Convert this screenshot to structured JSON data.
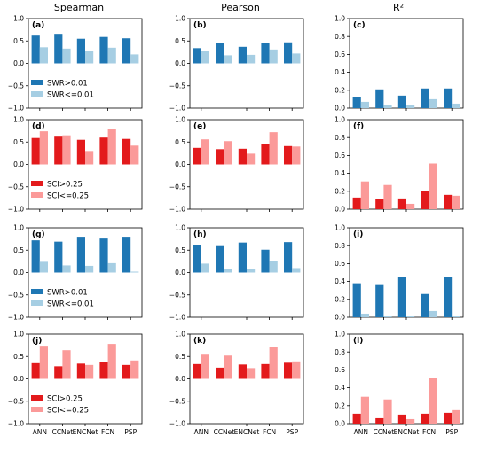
{
  "figure": {
    "columns": [
      "Spearman",
      "Pearson",
      "R²"
    ],
    "categories": [
      "ANN",
      "CCNet",
      "ENCNet",
      "FCN",
      "PSP"
    ]
  },
  "colors": {
    "swr_high": "#1f77b4",
    "swr_low": "#a6cee3",
    "sci_high": "#e31a1c",
    "sci_low": "#fb9a99"
  },
  "legends": {
    "swr": [
      "SWR>0.01",
      "SWR<=0.01"
    ],
    "sci": [
      "SCI>0.25",
      "SCI<=0.25"
    ]
  },
  "chart_data": [
    {
      "label": "(a)",
      "type": "bar",
      "metric": "Spearman",
      "categories": [
        "ANN",
        "CCNet",
        "ENCNet",
        "FCN",
        "PSP"
      ],
      "ylim": [
        -1.0,
        1.0
      ],
      "yticks": [
        "1.0",
        "0.5",
        "0.0",
        "−0.5",
        "−1.0"
      ],
      "legend_group": "swr",
      "legend_location": "lower-left",
      "series": [
        {
          "name": "SWR>0.01",
          "color_key": "swr_high",
          "values": [
            0.62,
            0.66,
            0.55,
            0.59,
            0.56
          ]
        },
        {
          "name": "SWR<=0.01",
          "color_key": "swr_low",
          "values": [
            0.36,
            0.33,
            0.28,
            0.35,
            0.2
          ]
        }
      ]
    },
    {
      "label": "(b)",
      "type": "bar",
      "metric": "Pearson",
      "categories": [
        "ANN",
        "CCNet",
        "ENCNet",
        "FCN",
        "PSP"
      ],
      "ylim": [
        -1.0,
        1.0
      ],
      "yticks": [
        "1.0",
        "0.5",
        "0.0",
        "−0.5",
        "−1.0"
      ],
      "series": [
        {
          "name": "SWR>0.01",
          "color_key": "swr_high",
          "values": [
            0.34,
            0.45,
            0.37,
            0.46,
            0.47
          ]
        },
        {
          "name": "SWR<=0.01",
          "color_key": "swr_low",
          "values": [
            0.27,
            0.18,
            0.19,
            0.31,
            0.22
          ]
        }
      ]
    },
    {
      "label": "(c)",
      "type": "bar",
      "metric": "R²",
      "categories": [
        "ANN",
        "CCNet",
        "ENCNet",
        "FCN",
        "PSP"
      ],
      "ylim": [
        0.0,
        1.0
      ],
      "yticks": [
        "1.0",
        "0.8",
        "0.6",
        "0.4",
        "0.2",
        "0.0"
      ],
      "series": [
        {
          "name": "SWR>0.01",
          "color_key": "swr_high",
          "values": [
            0.12,
            0.21,
            0.14,
            0.22,
            0.22
          ]
        },
        {
          "name": "SWR<=0.01",
          "color_key": "swr_low",
          "values": [
            0.07,
            0.03,
            0.03,
            0.1,
            0.05
          ]
        }
      ]
    },
    {
      "label": "(d)",
      "type": "bar",
      "metric": "Spearman",
      "categories": [
        "ANN",
        "CCNet",
        "ENCNet",
        "FCN",
        "PSP"
      ],
      "ylim": [
        -1.0,
        1.0
      ],
      "yticks": [
        "1.0",
        "0.5",
        "0.0",
        "−0.5",
        "−1.0"
      ],
      "legend_group": "sci",
      "legend_location": "lower-left",
      "series": [
        {
          "name": "SCI>0.25",
          "color_key": "sci_high",
          "values": [
            0.59,
            0.62,
            0.55,
            0.6,
            0.57
          ]
        },
        {
          "name": "SCI<=0.25",
          "color_key": "sci_low",
          "values": [
            0.74,
            0.65,
            0.3,
            0.79,
            0.42
          ]
        }
      ]
    },
    {
      "label": "(e)",
      "type": "bar",
      "metric": "Pearson",
      "categories": [
        "ANN",
        "CCNet",
        "ENCNet",
        "FCN",
        "PSP"
      ],
      "ylim": [
        -1.0,
        1.0
      ],
      "yticks": [
        "1.0",
        "0.5",
        "0.0",
        "−0.5",
        "−1.0"
      ],
      "series": [
        {
          "name": "SCI>0.25",
          "color_key": "sci_high",
          "values": [
            0.37,
            0.34,
            0.35,
            0.45,
            0.41
          ]
        },
        {
          "name": "SCI<=0.25",
          "color_key": "sci_low",
          "values": [
            0.56,
            0.52,
            0.24,
            0.72,
            0.4
          ]
        }
      ]
    },
    {
      "label": "(f)",
      "type": "bar",
      "metric": "R²",
      "categories": [
        "ANN",
        "CCNet",
        "ENCNet",
        "FCN",
        "PSP"
      ],
      "ylim": [
        0.0,
        1.0
      ],
      "yticks": [
        "1.0",
        "0.8",
        "0.6",
        "0.4",
        "0.2",
        "0.0"
      ],
      "series": [
        {
          "name": "SCI>0.25",
          "color_key": "sci_high",
          "values": [
            0.13,
            0.11,
            0.12,
            0.2,
            0.16
          ]
        },
        {
          "name": "SCI<=0.25",
          "color_key": "sci_low",
          "values": [
            0.31,
            0.27,
            0.06,
            0.51,
            0.15
          ]
        }
      ]
    },
    {
      "label": "(g)",
      "type": "bar",
      "metric": "Spearman",
      "categories": [
        "ANN",
        "CCNet",
        "ENCNet",
        "FCN",
        "PSP"
      ],
      "ylim": [
        -1.0,
        1.0
      ],
      "yticks": [
        "1.0",
        "0.5",
        "0.0",
        "−0.5",
        "−1.0"
      ],
      "legend_group": "swr",
      "legend_location": "lower-left",
      "series": [
        {
          "name": "SWR>0.01",
          "color_key": "swr_high",
          "values": [
            0.72,
            0.69,
            0.8,
            0.76,
            0.8
          ]
        },
        {
          "name": "SWR<=0.01",
          "color_key": "swr_low",
          "values": [
            0.24,
            0.16,
            0.15,
            0.21,
            0.02
          ]
        }
      ]
    },
    {
      "label": "(h)",
      "type": "bar",
      "metric": "Pearson",
      "categories": [
        "ANN",
        "CCNet",
        "ENCNet",
        "FCN",
        "PSP"
      ],
      "ylim": [
        -1.0,
        1.0
      ],
      "yticks": [
        "1.0",
        "0.5",
        "0.0",
        "−0.5",
        "−1.0"
      ],
      "series": [
        {
          "name": "SWR>0.01",
          "color_key": "swr_high",
          "values": [
            0.62,
            0.59,
            0.67,
            0.51,
            0.68
          ]
        },
        {
          "name": "SWR<=0.01",
          "color_key": "swr_low",
          "values": [
            0.2,
            0.08,
            0.08,
            0.26,
            0.1
          ]
        }
      ]
    },
    {
      "label": "(i)",
      "type": "bar",
      "metric": "R²",
      "categories": [
        "ANN",
        "CCNet",
        "ENCNet",
        "FCN",
        "PSP"
      ],
      "ylim": [
        0.0,
        1.0
      ],
      "yticks": [
        "1.0",
        "0.8",
        "0.6",
        "0.4",
        "0.2",
        "0.0"
      ],
      "series": [
        {
          "name": "SWR>0.01",
          "color_key": "swr_high",
          "values": [
            0.38,
            0.36,
            0.45,
            0.26,
            0.45
          ]
        },
        {
          "name": "SWR<=0.01",
          "color_key": "swr_low",
          "values": [
            0.04,
            0.01,
            0.01,
            0.07,
            0.01
          ]
        }
      ]
    },
    {
      "label": "(j)",
      "type": "bar",
      "metric": "Spearman",
      "categories": [
        "ANN",
        "CCNet",
        "ENCNet",
        "FCN",
        "PSP"
      ],
      "ylim": [
        -1.0,
        1.0
      ],
      "yticks": [
        "1.0",
        "0.5",
        "0.0",
        "−0.5",
        "−1.0"
      ],
      "legend_group": "sci",
      "legend_location": "lower-left",
      "series": [
        {
          "name": "SCI>0.25",
          "color_key": "sci_high",
          "values": [
            0.35,
            0.28,
            0.34,
            0.37,
            0.31
          ]
        },
        {
          "name": "SCI<=0.25",
          "color_key": "sci_low",
          "values": [
            0.74,
            0.64,
            0.31,
            0.78,
            0.41
          ]
        }
      ]
    },
    {
      "label": "(k)",
      "type": "bar",
      "metric": "Pearson",
      "categories": [
        "ANN",
        "CCNet",
        "ENCNet",
        "FCN",
        "PSP"
      ],
      "ylim": [
        -1.0,
        1.0
      ],
      "yticks": [
        "1.0",
        "0.5",
        "0.0",
        "−0.5",
        "−1.0"
      ],
      "series": [
        {
          "name": "SCI>0.25",
          "color_key": "sci_high",
          "values": [
            0.33,
            0.25,
            0.32,
            0.33,
            0.36
          ]
        },
        {
          "name": "SCI<=0.25",
          "color_key": "sci_low",
          "values": [
            0.56,
            0.52,
            0.24,
            0.71,
            0.39
          ]
        }
      ]
    },
    {
      "label": "(l)",
      "type": "bar",
      "metric": "R²",
      "categories": [
        "ANN",
        "CCNet",
        "ENCNet",
        "FCN",
        "PSP"
      ],
      "ylim": [
        0.0,
        1.0
      ],
      "yticks": [
        "1.0",
        "0.8",
        "0.6",
        "0.4",
        "0.2",
        "0.0"
      ],
      "series": [
        {
          "name": "SCI>0.25",
          "color_key": "sci_high",
          "values": [
            0.11,
            0.06,
            0.1,
            0.11,
            0.12
          ]
        },
        {
          "name": "SCI<=0.25",
          "color_key": "sci_low",
          "values": [
            0.3,
            0.27,
            0.05,
            0.51,
            0.15
          ]
        }
      ]
    }
  ]
}
